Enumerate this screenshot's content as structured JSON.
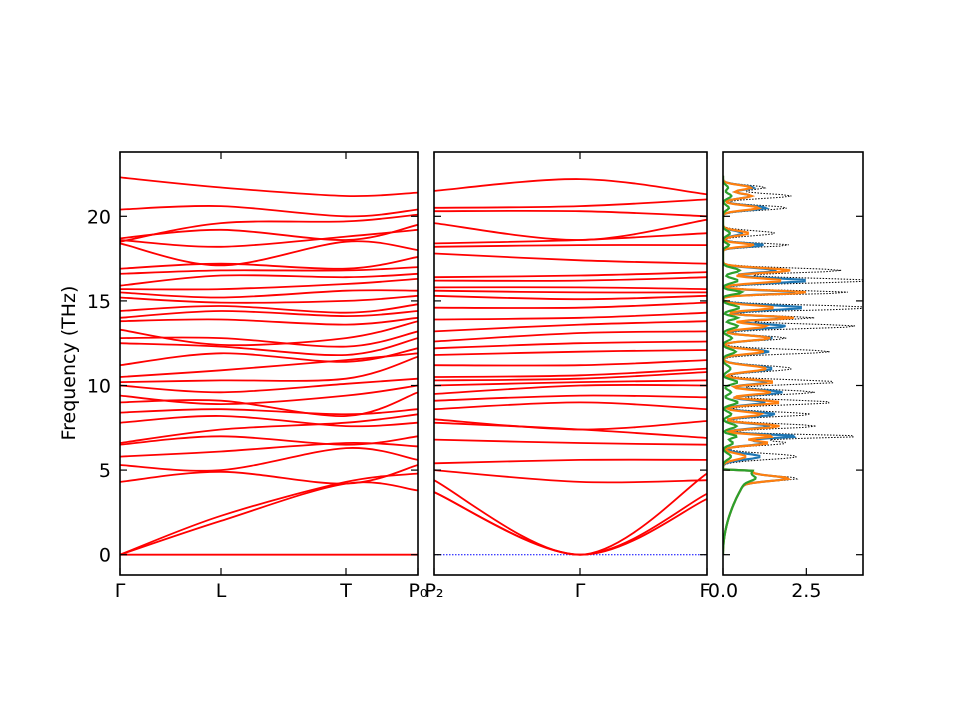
{
  "chart_data": [
    {
      "type": "line",
      "panel": "band-structure-left",
      "ylabel": "Frequency (THz)",
      "ylim": [
        -1.2,
        23.8
      ],
      "yticks": [
        0,
        5,
        10,
        15,
        20
      ],
      "xticks": [
        "Γ",
        "L",
        "T",
        "P₀"
      ],
      "series_color": "#ff0000",
      "zero_line_color": "#0000ff",
      "bands": [
        [
          0,
          0,
          0,
          0
        ],
        [
          0,
          2.0,
          4.2,
          3.8
        ],
        [
          0,
          2.3,
          4.3,
          4.8
        ],
        [
          4.3,
          4.9,
          4.2,
          5.3
        ],
        [
          5.3,
          5.0,
          6.3,
          5.6
        ],
        [
          5.8,
          6.1,
          6.6,
          6.4
        ],
        [
          6.5,
          7.0,
          6.5,
          7.0
        ],
        [
          6.6,
          7.4,
          7.8,
          8.3
        ],
        [
          7.8,
          8.2,
          7.6,
          7.8
        ],
        [
          8.4,
          8.6,
          8.3,
          8.6
        ],
        [
          9.0,
          9.1,
          8.2,
          9.6
        ],
        [
          9.4,
          8.9,
          9.4,
          10.0
        ],
        [
          10.0,
          9.6,
          10.1,
          10.4
        ],
        [
          10.2,
          10.3,
          10.4,
          11.7
        ],
        [
          10.5,
          10.9,
          11.5,
          11.9
        ],
        [
          11.2,
          11.9,
          11.4,
          12.2
        ],
        [
          12.5,
          12.3,
          11.8,
          12.8
        ],
        [
          12.8,
          12.8,
          12.3,
          13.2
        ],
        [
          13.3,
          12.4,
          12.8,
          13.8
        ],
        [
          13.8,
          13.9,
          13.6,
          14.0
        ],
        [
          14.0,
          14.4,
          14.1,
          14.4
        ],
        [
          14.4,
          14.7,
          14.3,
          14.8
        ],
        [
          15.2,
          14.9,
          15.0,
          15.3
        ],
        [
          15.5,
          15.2,
          15.6,
          15.6
        ],
        [
          15.7,
          15.7,
          16.0,
          16.3
        ],
        [
          15.9,
          16.5,
          16.4,
          16.6
        ],
        [
          16.6,
          16.8,
          16.8,
          17.0
        ],
        [
          16.9,
          17.2,
          16.9,
          17.6
        ],
        [
          18.4,
          17.1,
          18.5,
          18.0
        ],
        [
          18.6,
          18.2,
          18.8,
          19.2
        ],
        [
          18.7,
          19.2,
          18.6,
          19.5
        ],
        [
          18.5,
          19.6,
          19.7,
          20.1
        ],
        [
          20.4,
          20.6,
          20.0,
          20.4
        ],
        [
          22.3,
          21.7,
          21.2,
          21.4
        ]
      ]
    },
    {
      "type": "line",
      "panel": "band-structure-right",
      "xticks": [
        "P₂",
        "Γ",
        "F"
      ],
      "series_color": "#ff0000",
      "zero_line_color": "#0000ff",
      "bands": [
        [
          3.7,
          0,
          3.6
        ],
        [
          3.7,
          0,
          3.3
        ],
        [
          4.4,
          0,
          4.8
        ],
        [
          5.0,
          4.3,
          4.4
        ],
        [
          5.4,
          5.6,
          5.6
        ],
        [
          6.8,
          6.6,
          6.5
        ],
        [
          7.8,
          7.4,
          6.9
        ],
        [
          8.0,
          7.4,
          7.9
        ],
        [
          8.6,
          9.0,
          8.6
        ],
        [
          9.1,
          9.4,
          9.3
        ],
        [
          9.5,
          10.0,
          10.0
        ],
        [
          10.0,
          10.2,
          10.3
        ],
        [
          10.3,
          10.4,
          10.8
        ],
        [
          10.5,
          10.6,
          11.0
        ],
        [
          11.2,
          11.2,
          11.5
        ],
        [
          11.8,
          12.0,
          12.1
        ],
        [
          12.2,
          12.5,
          12.6
        ],
        [
          12.6,
          13.1,
          13.2
        ],
        [
          13.2,
          13.6,
          13.8
        ],
        [
          13.9,
          14.0,
          14.3
        ],
        [
          14.6,
          14.6,
          14.9
        ],
        [
          15.3,
          15.1,
          15.3
        ],
        [
          15.6,
          15.5,
          15.5
        ],
        [
          15.8,
          15.8,
          15.7
        ],
        [
          16.2,
          16.2,
          16.4
        ],
        [
          16.4,
          16.5,
          16.7
        ],
        [
          17.8,
          17.4,
          17.2
        ],
        [
          18.2,
          18.3,
          18.3
        ],
        [
          18.4,
          18.6,
          19.0
        ],
        [
          19.6,
          18.6,
          19.8
        ],
        [
          20.3,
          20.3,
          20.0
        ],
        [
          20.5,
          20.6,
          21.0
        ],
        [
          21.5,
          22.2,
          21.3
        ]
      ]
    },
    {
      "type": "line",
      "panel": "phonon-dos",
      "xticks": [
        "0.0",
        "2.5"
      ],
      "xlim": [
        0,
        4.2
      ],
      "series": [
        {
          "style": "dotted",
          "color": "#000000"
        },
        {
          "color": "#1f77b4"
        },
        {
          "color": "#ff7f0e"
        },
        {
          "color": "#2ca02c"
        }
      ]
    }
  ]
}
